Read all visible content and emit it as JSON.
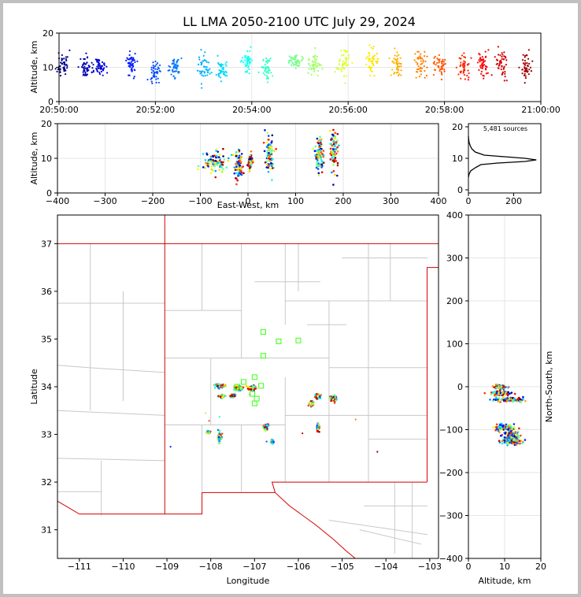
{
  "chart_data": [
    {
      "type": "scatter",
      "panel": "time-altitude",
      "title": "LL LMA 2050-2100 UTC July 29, 2024",
      "xlabel": "",
      "ylabel": "Altitude, km",
      "x_ticks": [
        "20:50:00",
        "20:52:00",
        "20:54:00",
        "20:56:00",
        "20:58:00",
        "21:00:00"
      ],
      "xlim_minutes": [
        0,
        10
      ],
      "ylim": [
        0,
        20
      ],
      "y_ticks": [
        0,
        10,
        20
      ],
      "colormap": "jet (color by time)",
      "clusters": [
        {
          "t": 0.08,
          "y": 11,
          "spread": 4
        },
        {
          "t": 0.55,
          "y": 10,
          "spread": 3
        },
        {
          "t": 0.85,
          "y": 10,
          "spread": 3
        },
        {
          "t": 1.5,
          "y": 11,
          "spread": 4
        },
        {
          "t": 2.0,
          "y": 9,
          "spread": 3
        },
        {
          "t": 2.4,
          "y": 10,
          "spread": 3
        },
        {
          "t": 3.0,
          "y": 10,
          "spread": 4
        },
        {
          "t": 3.4,
          "y": 9,
          "spread": 3
        },
        {
          "t": 3.9,
          "y": 12,
          "spread": 3
        },
        {
          "t": 4.3,
          "y": 10,
          "spread": 4
        },
        {
          "t": 4.9,
          "y": 12,
          "spread": 2
        },
        {
          "t": 5.3,
          "y": 11,
          "spread": 3
        },
        {
          "t": 5.9,
          "y": 11,
          "spread": 4
        },
        {
          "t": 6.5,
          "y": 12,
          "spread": 4
        },
        {
          "t": 7.0,
          "y": 11,
          "spread": 4
        },
        {
          "t": 7.5,
          "y": 11,
          "spread": 4
        },
        {
          "t": 7.9,
          "y": 11,
          "spread": 3
        },
        {
          "t": 8.4,
          "y": 10,
          "spread": 4
        },
        {
          "t": 8.8,
          "y": 11,
          "spread": 4
        },
        {
          "t": 9.2,
          "y": 11,
          "spread": 4
        },
        {
          "t": 9.7,
          "y": 10,
          "spread": 4
        }
      ]
    },
    {
      "type": "scatter",
      "panel": "east-west-altitude",
      "xlabel": "East-West, km",
      "ylabel": "Altitude, km",
      "xlim": [
        -400,
        400
      ],
      "ylim": [
        0,
        20
      ],
      "x_ticks": [
        -400,
        -300,
        -200,
        -100,
        0,
        100,
        200,
        300,
        400
      ],
      "y_ticks": [
        0,
        10,
        20
      ],
      "clusters": [
        {
          "x": -70,
          "y": 9,
          "spread_x": 25,
          "spread_y": 3
        },
        {
          "x": -20,
          "y": 8,
          "spread_x": 8,
          "spread_y": 4
        },
        {
          "x": 5,
          "y": 9,
          "spread_x": 4,
          "spread_y": 2
        },
        {
          "x": 45,
          "y": 11,
          "spread_x": 8,
          "spread_y": 5
        },
        {
          "x": 150,
          "y": 11,
          "spread_x": 8,
          "spread_y": 5
        },
        {
          "x": 180,
          "y": 12,
          "spread_x": 8,
          "spread_y": 6
        }
      ]
    },
    {
      "type": "line",
      "panel": "altitude-histogram",
      "annotation": "5,481 sources",
      "xlim": [
        0,
        320
      ],
      "ylim": [
        -1,
        21
      ],
      "x_ticks": [
        0,
        200
      ],
      "y_ticks": [
        0,
        10,
        20
      ],
      "x": [
        0,
        3,
        10,
        30,
        55,
        130,
        250,
        300,
        250,
        160,
        70,
        30,
        15,
        8,
        3,
        1,
        0
      ],
      "y": [
        4,
        5,
        6,
        7,
        8,
        8.5,
        9,
        9.5,
        10,
        10.5,
        11,
        12,
        13,
        14,
        15,
        16,
        17
      ]
    },
    {
      "type": "scatter",
      "panel": "plan-view",
      "xlabel": "Longitude",
      "ylabel": "Latitude",
      "xlim": [
        -111.5,
        -102.8
      ],
      "ylim": [
        30.4,
        37.6
      ],
      "x_ticks": [
        -111,
        -110,
        -109,
        -108,
        -107,
        -106,
        -105,
        -104,
        -103
      ],
      "y_ticks": [
        31,
        32,
        33,
        34,
        35,
        36,
        37
      ],
      "clusters": [
        {
          "lon": -107.8,
          "lat": 34.02,
          "sx": 0.12,
          "sy": 0.04
        },
        {
          "lon": -107.35,
          "lat": 33.98,
          "sx": 0.12,
          "sy": 0.06
        },
        {
          "lon": -107.5,
          "lat": 33.82,
          "sx": 0.06,
          "sy": 0.03
        },
        {
          "lon": -107.75,
          "lat": 33.8,
          "sx": 0.05,
          "sy": 0.03
        },
        {
          "lon": -107.05,
          "lat": 33.97,
          "sx": 0.08,
          "sy": 0.05
        },
        {
          "lon": -106.75,
          "lat": 33.15,
          "sx": 0.05,
          "sy": 0.06
        },
        {
          "lon": -106.6,
          "lat": 32.85,
          "sx": 0.03,
          "sy": 0.04
        },
        {
          "lon": -107.8,
          "lat": 32.95,
          "sx": 0.04,
          "sy": 0.1
        },
        {
          "lon": -108.05,
          "lat": 33.05,
          "sx": 0.04,
          "sy": 0.03
        },
        {
          "lon": -105.55,
          "lat": 33.8,
          "sx": 0.06,
          "sy": 0.05
        },
        {
          "lon": -105.2,
          "lat": 33.75,
          "sx": 0.08,
          "sy": 0.06
        },
        {
          "lon": -105.55,
          "lat": 33.15,
          "sx": 0.03,
          "sy": 0.1
        },
        {
          "lon": -105.7,
          "lat": 33.65,
          "sx": 0.04,
          "sy": 0.05
        }
      ],
      "stations_lonlat": [
        [
          -106.8,
          35.15
        ],
        [
          -106.45,
          34.95
        ],
        [
          -106.0,
          34.97
        ],
        [
          -106.8,
          34.65
        ],
        [
          -107.0,
          34.2
        ],
        [
          -107.25,
          34.1
        ],
        [
          -106.85,
          34.02
        ],
        [
          -107.05,
          33.85
        ],
        [
          -106.95,
          33.75
        ],
        [
          -107.0,
          33.65
        ],
        [
          -107.4,
          34.0
        ]
      ]
    },
    {
      "type": "scatter",
      "panel": "altitude-north-south",
      "xlabel": "Altitude, km",
      "ylabel": "North-South, km",
      "xlim": [
        0,
        20
      ],
      "ylim": [
        -400,
        400
      ],
      "x_ticks": [
        0,
        10,
        20
      ],
      "y_ticks": [
        -400,
        -300,
        -200,
        -100,
        0,
        100,
        200,
        300,
        400
      ],
      "clusters": [
        {
          "alt": 9,
          "ns": 0,
          "sa": 1.5,
          "sn": 4
        },
        {
          "alt": 9,
          "ns": -15,
          "sa": 3,
          "sn": 6
        },
        {
          "alt": 11,
          "ns": -30,
          "sa": 4,
          "sn": 5
        },
        {
          "alt": 10,
          "ns": -95,
          "sa": 3,
          "sn": 8
        },
        {
          "alt": 12,
          "ns": -115,
          "sa": 3,
          "sn": 10
        },
        {
          "alt": 12,
          "ns": -128,
          "sa": 3,
          "sn": 6
        }
      ]
    }
  ]
}
